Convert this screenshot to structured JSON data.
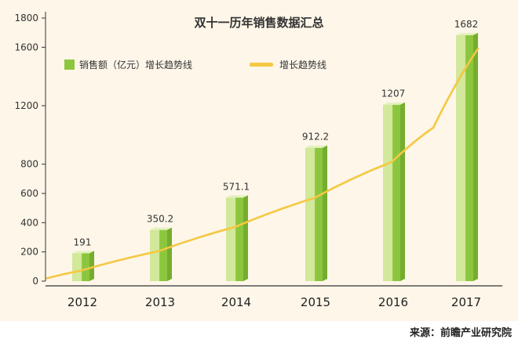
{
  "chart_data": {
    "type": "bar",
    "title": "双十一历年销售数据汇总",
    "categories": [
      "2012",
      "2013",
      "2014",
      "2015",
      "2016",
      "2017"
    ],
    "series": [
      {
        "name": "销售额（亿元）增长趋势线",
        "values": [
          191,
          350.2,
          571.1,
          912.2,
          1207,
          1682
        ],
        "color": "#8cc63f"
      }
    ],
    "data_labels": [
      "191",
      "350.2",
      "571.1",
      "912.2",
      "1207",
      "1682"
    ],
    "trend": {
      "name": "增长趋势线",
      "color": "#f5c842",
      "values": [
        20,
        72,
        205,
        370,
        568,
        815,
        1050,
        1590
      ]
    },
    "ylim": [
      0,
      1800
    ],
    "yticks": [
      0,
      200,
      400,
      600,
      800,
      1200,
      1600,
      1800
    ],
    "ytick_labels": [
      "0",
      "200",
      "400",
      "600",
      "800",
      "1200",
      "1600",
      "1800"
    ],
    "grid": false,
    "legend": "top-left",
    "xlabel": "",
    "ylabel": ""
  },
  "source": "来源：前瞻产业研究院"
}
